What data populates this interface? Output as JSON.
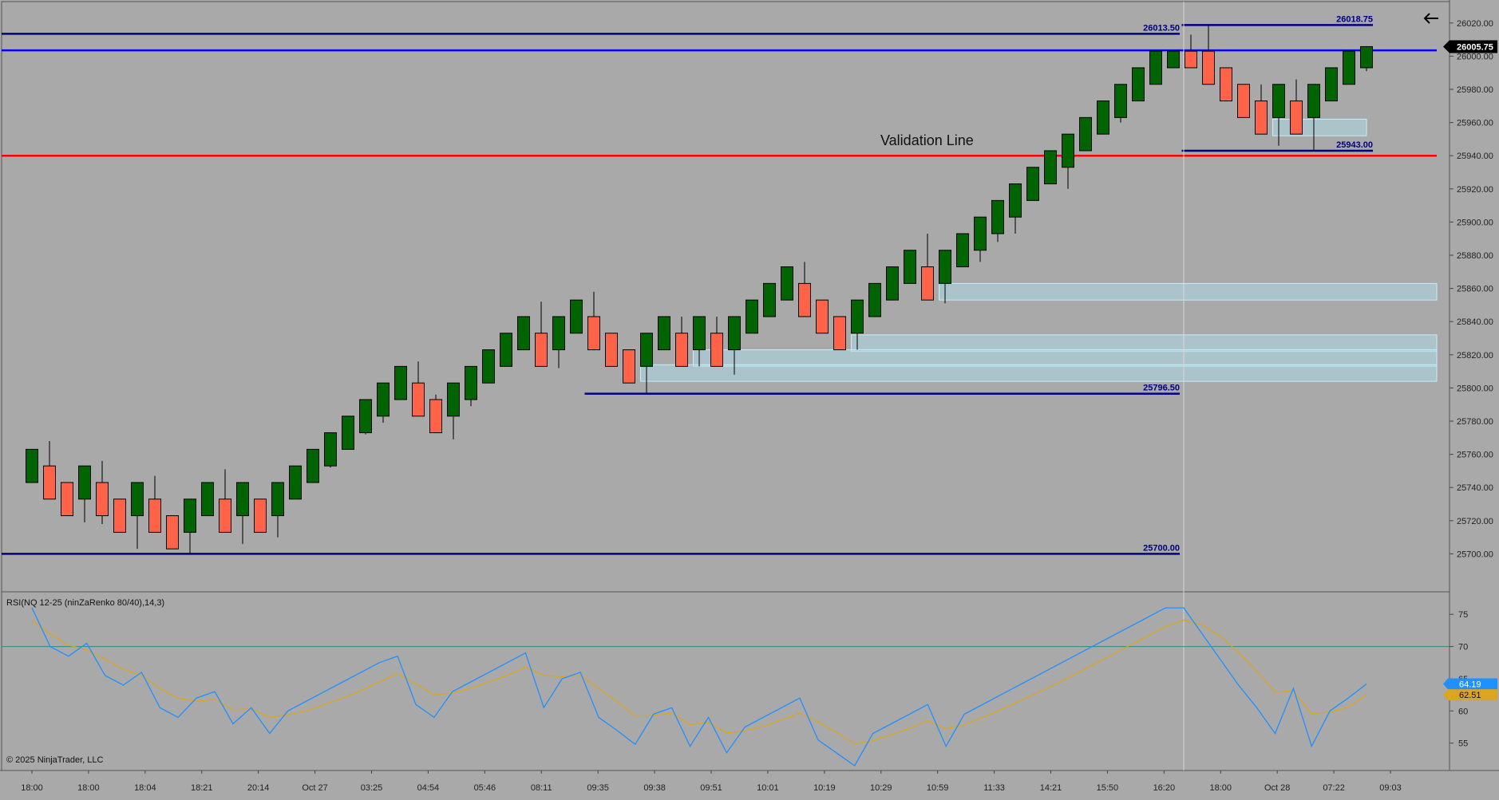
{
  "chart_data": [
    {
      "type": "candlestick",
      "title": "",
      "ylim": [
        25680,
        26030
      ],
      "grid": false,
      "price_ticks": [
        25700,
        25720,
        25740,
        25760,
        25780,
        25800,
        25820,
        25840,
        25860,
        25880,
        25900,
        25920,
        25940,
        25960,
        25980,
        26000,
        26020
      ],
      "price_tick_labels": [
        "25700.00",
        "25720.00",
        "25740.00",
        "25760.00",
        "25780.00",
        "25800.00",
        "25820.00",
        "25840.00",
        "25860.00",
        "25880.00",
        "25900.00",
        "25920.00",
        "25940.00",
        "25960.00",
        "25980.00",
        "26000.00",
        "26020.00"
      ],
      "x_labels": [
        "18:00",
        "18:00",
        "18:04",
        "18:21",
        "20:14",
        "Oct 27",
        "03:25",
        "04:54",
        "05:46",
        "08:11",
        "09:35",
        "09:38",
        "09:51",
        "10:01",
        "10:19",
        "10:29",
        "10:59",
        "11:33",
        "14:21",
        "15:50",
        "16:20",
        "18:00",
        "Oct 28",
        "07:22",
        "09:03"
      ],
      "current_price": "26005.75",
      "candles": [
        {
          "o": 25743,
          "c": 25763,
          "h": 25763,
          "l": 25743
        },
        {
          "o": 25753,
          "c": 25733,
          "h": 25768,
          "l": 25733
        },
        {
          "o": 25743,
          "c": 25723,
          "h": 25743,
          "l": 25723
        },
        {
          "o": 25733,
          "c": 25753,
          "h": 25753,
          "l": 25719
        },
        {
          "o": 25743,
          "c": 25723,
          "h": 25756,
          "l": 25718
        },
        {
          "o": 25733,
          "c": 25713,
          "h": 25733,
          "l": 25713
        },
        {
          "o": 25723,
          "c": 25743,
          "h": 25743,
          "l": 25703
        },
        {
          "o": 25733,
          "c": 25713,
          "h": 25747,
          "l": 25713
        },
        {
          "o": 25723,
          "c": 25703,
          "h": 25723,
          "l": 25703
        },
        {
          "o": 25713,
          "c": 25733,
          "h": 25733,
          "l": 25700
        },
        {
          "o": 25723,
          "c": 25743,
          "h": 25743,
          "l": 25723
        },
        {
          "o": 25733,
          "c": 25713,
          "h": 25751,
          "l": 25713
        },
        {
          "o": 25723,
          "c": 25743,
          "h": 25743,
          "l": 25706
        },
        {
          "o": 25733,
          "c": 25713,
          "h": 25733,
          "l": 25713
        },
        {
          "o": 25723,
          "c": 25743,
          "h": 25743,
          "l": 25710
        },
        {
          "o": 25733,
          "c": 25753,
          "h": 25753,
          "l": 25733
        },
        {
          "o": 25743,
          "c": 25763,
          "h": 25763,
          "l": 25743
        },
        {
          "o": 25753,
          "c": 25773,
          "h": 25773,
          "l": 25752
        },
        {
          "o": 25763,
          "c": 25783,
          "h": 25783,
          "l": 25763
        },
        {
          "o": 25773,
          "c": 25793,
          "h": 25793,
          "l": 25772
        },
        {
          "o": 25783,
          "c": 25803,
          "h": 25803,
          "l": 25779
        },
        {
          "o": 25793,
          "c": 25813,
          "h": 25813,
          "l": 25793
        },
        {
          "o": 25803,
          "c": 25783,
          "h": 25816,
          "l": 25783
        },
        {
          "o": 25793,
          "c": 25773,
          "h": 25796,
          "l": 25773
        },
        {
          "o": 25783,
          "c": 25803,
          "h": 25803,
          "l": 25769
        },
        {
          "o": 25793,
          "c": 25813,
          "h": 25813,
          "l": 25789
        },
        {
          "o": 25803,
          "c": 25823,
          "h": 25823,
          "l": 25803
        },
        {
          "o": 25813,
          "c": 25833,
          "h": 25833,
          "l": 25813
        },
        {
          "o": 25823,
          "c": 25843,
          "h": 25843,
          "l": 25823
        },
        {
          "o": 25833,
          "c": 25813,
          "h": 25852,
          "l": 25813
        },
        {
          "o": 25823,
          "c": 25843,
          "h": 25843,
          "l": 25812
        },
        {
          "o": 25833,
          "c": 25853,
          "h": 25853,
          "l": 25833
        },
        {
          "o": 25843,
          "c": 25823,
          "h": 25858,
          "l": 25823
        },
        {
          "o": 25833,
          "c": 25813,
          "h": 25833,
          "l": 25813
        },
        {
          "o": 25823,
          "c": 25803,
          "h": 25823,
          "l": 25803
        },
        {
          "o": 25813,
          "c": 25833,
          "h": 25833,
          "l": 25797
        },
        {
          "o": 25823,
          "c": 25843,
          "h": 25843,
          "l": 25823
        },
        {
          "o": 25833,
          "c": 25813,
          "h": 25843,
          "l": 25813
        },
        {
          "o": 25823,
          "c": 25843,
          "h": 25843,
          "l": 25813
        },
        {
          "o": 25833,
          "c": 25813,
          "h": 25843,
          "l": 25813
        },
        {
          "o": 25823,
          "c": 25843,
          "h": 25843,
          "l": 25808
        },
        {
          "o": 25833,
          "c": 25853,
          "h": 25853,
          "l": 25833
        },
        {
          "o": 25843,
          "c": 25863,
          "h": 25863,
          "l": 25843
        },
        {
          "o": 25853,
          "c": 25873,
          "h": 25873,
          "l": 25853
        },
        {
          "o": 25863,
          "c": 25843,
          "h": 25876,
          "l": 25843
        },
        {
          "o": 25853,
          "c": 25833,
          "h": 25853,
          "l": 25833
        },
        {
          "o": 25843,
          "c": 25823,
          "h": 25843,
          "l": 25823
        },
        {
          "o": 25833,
          "c": 25853,
          "h": 25853,
          "l": 25823
        },
        {
          "o": 25843,
          "c": 25863,
          "h": 25863,
          "l": 25843
        },
        {
          "o": 25853,
          "c": 25873,
          "h": 25873,
          "l": 25853
        },
        {
          "o": 25863,
          "c": 25883,
          "h": 25883,
          "l": 25863
        },
        {
          "o": 25873,
          "c": 25853,
          "h": 25893,
          "l": 25853
        },
        {
          "o": 25863,
          "c": 25883,
          "h": 25883,
          "l": 25851
        },
        {
          "o": 25873,
          "c": 25893,
          "h": 25893,
          "l": 25873
        },
        {
          "o": 25883,
          "c": 25903,
          "h": 25903,
          "l": 25876
        },
        {
          "o": 25893,
          "c": 25913,
          "h": 25913,
          "l": 25888
        },
        {
          "o": 25903,
          "c": 25923,
          "h": 25923,
          "l": 25893
        },
        {
          "o": 25913,
          "c": 25933,
          "h": 25933,
          "l": 25913
        },
        {
          "o": 25923,
          "c": 25943,
          "h": 25943,
          "l": 25923
        },
        {
          "o": 25933,
          "c": 25953,
          "h": 25953,
          "l": 25920
        },
        {
          "o": 25943,
          "c": 25963,
          "h": 25963,
          "l": 25943
        },
        {
          "o": 25953,
          "c": 25973,
          "h": 25973,
          "l": 25953
        },
        {
          "o": 25963,
          "c": 25983,
          "h": 25983,
          "l": 25960
        },
        {
          "o": 25973,
          "c": 25993,
          "h": 25993,
          "l": 25973
        },
        {
          "o": 25983,
          "c": 26003,
          "h": 26003,
          "l": 25983
        },
        {
          "o": 25993,
          "c": 26003,
          "h": 26003,
          "l": 25993
        },
        {
          "o": 26003,
          "c": 25993,
          "h": 26013,
          "l": 25993
        },
        {
          "o": 26003,
          "c": 25983,
          "h": 26018.75,
          "l": 25983
        },
        {
          "o": 25993,
          "c": 25973,
          "h": 25993,
          "l": 25973
        },
        {
          "o": 25983,
          "c": 25963,
          "h": 25983,
          "l": 25963
        },
        {
          "o": 25973,
          "c": 25953,
          "h": 25983,
          "l": 25953
        },
        {
          "o": 25963,
          "c": 25983,
          "h": 25983,
          "l": 25946
        },
        {
          "o": 25973,
          "c": 25953,
          "h": 25986,
          "l": 25953
        },
        {
          "o": 25963,
          "c": 25983,
          "h": 25983,
          "l": 25943
        },
        {
          "o": 25973,
          "c": 25993,
          "h": 25993,
          "l": 25973
        },
        {
          "o": 25983,
          "c": 26003,
          "h": 26003,
          "l": 25983
        },
        {
          "o": 25993,
          "c": 26005.75,
          "h": 26006,
          "l": 25991
        }
      ],
      "levels": [
        {
          "price": 26013.5,
          "label": "26013.50",
          "color": "#000080",
          "from": 0,
          "to": 65
        },
        {
          "price": 26018.75,
          "label": "26018.75",
          "color": "#000080",
          "from": 66,
          "to": 76
        },
        {
          "price": 25943.0,
          "label": "25943.00",
          "color": "#000080",
          "from": 66,
          "to": 76
        },
        {
          "price": 25796.5,
          "label": "25796.50",
          "color": "#000080",
          "from": 32,
          "to": 65
        },
        {
          "price": 25700.0,
          "label": "25700.00",
          "color": "#000080",
          "from": 0,
          "to": 65
        },
        {
          "price": 26003.5,
          "label": "",
          "color": "#0000ff",
          "from": 0,
          "to": 80
        },
        {
          "price": 25940.0,
          "label": "",
          "color": "#ff0000",
          "from": 0,
          "to": 80
        }
      ],
      "zones": [
        {
          "top": 25962,
          "bottom": 25952,
          "from": 71,
          "to": 76
        },
        {
          "top": 25863,
          "bottom": 25853,
          "from": 52,
          "to": 80
        },
        {
          "top": 25832,
          "bottom": 25822,
          "from": 47,
          "to": 80
        },
        {
          "top": 25823,
          "bottom": 25813,
          "from": 38,
          "to": 80
        },
        {
          "top": 25814,
          "bottom": 25804,
          "from": 35,
          "to": 80
        }
      ],
      "annotations": [
        {
          "text": "Validation Line"
        }
      ],
      "cursor_index": 65,
      "colors": {
        "up": "#006400",
        "down": "#ff6347",
        "wick": "#000000",
        "zone": "#add8e6",
        "background": "#a9a9a9"
      }
    },
    {
      "type": "line",
      "title": "RSI(NQ 12-25 (ninZaRenko 80/40),14,3)",
      "ylim": [
        51,
        78
      ],
      "y_ticks": [
        55,
        60,
        65,
        70,
        75
      ],
      "reference_line": 70,
      "series": [
        {
          "name": "",
          "color": "#1e90ff",
          "values": [
            76,
            70,
            68.5,
            70.5,
            65.5,
            64,
            66,
            60.5,
            59,
            62,
            63,
            58,
            60.5,
            56.5,
            60,
            61.5,
            63,
            64.5,
            66,
            67.5,
            68.5,
            61,
            59,
            63,
            64.5,
            66,
            67.5,
            69,
            60.5,
            65,
            66,
            59,
            57,
            54.8,
            59.5,
            60.5,
            54.5,
            59,
            53.5,
            57.5,
            59,
            60.5,
            62,
            55.5,
            53.5,
            51.5,
            56.5,
            58,
            59.5,
            61,
            54.5,
            59.5,
            61,
            62.5,
            64,
            65.5,
            67,
            68.5,
            70,
            71.5,
            73,
            74.5,
            76,
            76,
            72,
            68,
            64,
            60.5,
            56.5,
            63.5,
            54.5,
            60,
            62,
            64.19
          ]
        },
        {
          "name": "",
          "color": "#daa520",
          "values": [
            74,
            72,
            70.2,
            69.5,
            68,
            66.5,
            65.5,
            63.5,
            62,
            61.5,
            61.8,
            60.2,
            60.3,
            59,
            59.4,
            60,
            61,
            62,
            63.2,
            64.5,
            65.8,
            64.2,
            62.5,
            62.8,
            63.5,
            64.5,
            65.5,
            66.8,
            65.5,
            65.3,
            65.5,
            63.5,
            61.5,
            59.2,
            59.3,
            59.7,
            57.9,
            58.2,
            56.6,
            56.9,
            57.6,
            58.6,
            59.7,
            58.3,
            56.7,
            54.9,
            55.4,
            56.3,
            57.3,
            58.5,
            57.2,
            57.9,
            59,
            60.2,
            61.5,
            62.8,
            64.2,
            65.6,
            67.1,
            68.6,
            70.1,
            71.6,
            73.1,
            74.1,
            73.4,
            71.6,
            69.1,
            66.2,
            62.9,
            63.1,
            59.6,
            59.8,
            60.6,
            62.51
          ]
        }
      ],
      "last_values": [
        "64.19",
        "62.51"
      ]
    }
  ],
  "footer": {
    "copyright": "© 2025 NinjaTrader, LLC"
  },
  "toolbar": {
    "back_icon": "arrow-left-icon"
  }
}
